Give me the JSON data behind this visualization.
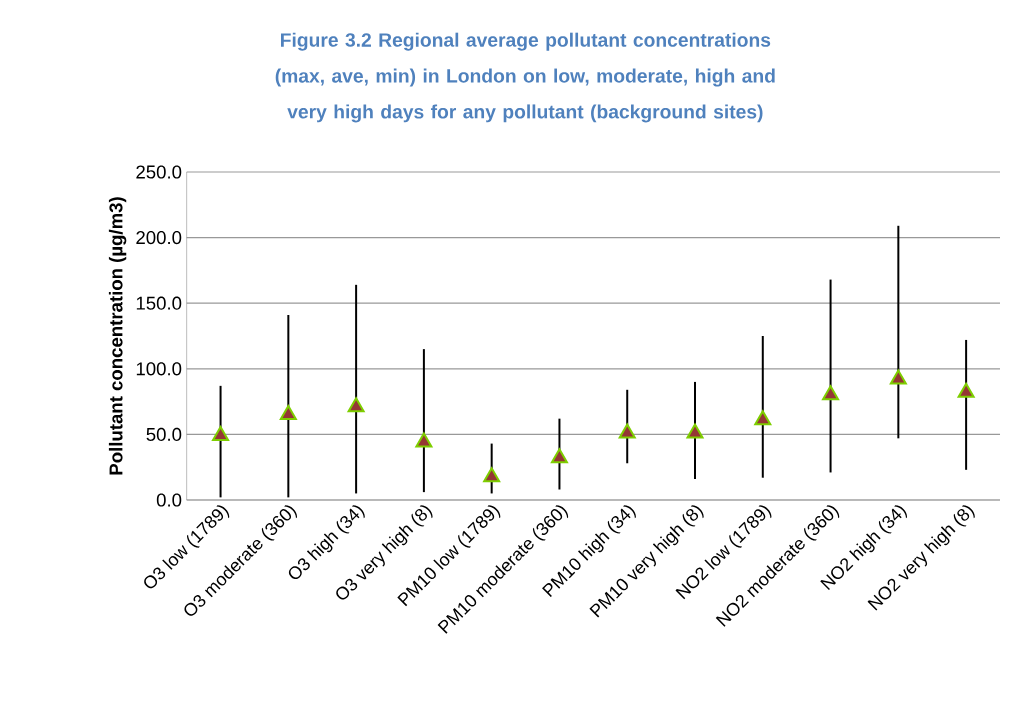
{
  "chart_data": {
    "type": "scatter",
    "title": "Figure 3.2 Regional average pollutant concentrations (max, ave, min) in London on low, moderate, high and very high days for any pollutant (background sites)",
    "ylabel": "Pollutant concentration (µg/m3)",
    "categories": [
      "O3 low (1789)",
      "O3 moderate (360)",
      "O3 high (34)",
      "O3 very high (8)",
      "PM10 low (1789)",
      "PM10 moderate (360)",
      "PM10 high (34)",
      "PM10 very high (8)",
      "NO2 low (1789)",
      "NO2 moderate (360)",
      "NO2 high (34)",
      "NO2 very high (8)"
    ],
    "values": [
      49,
      65,
      71,
      44,
      17.5,
      32,
      51,
      51,
      61,
      80,
      92,
      82
    ],
    "errors": [
      [
        2,
        87
      ],
      [
        2,
        141
      ],
      [
        5,
        164
      ],
      [
        6,
        115
      ],
      [
        5,
        43
      ],
      [
        8,
        62
      ],
      [
        28,
        84
      ],
      [
        16,
        90
      ],
      [
        17,
        125
      ],
      [
        21,
        168
      ],
      [
        47,
        209
      ],
      [
        23,
        122
      ]
    ],
    "color": "#953735",
    "marker": "triangle",
    "ylim": [
      0,
      250
    ],
    "yticks": [
      {
        "value": 0,
        "label": "0.0"
      },
      {
        "value": 50,
        "label": "50.0"
      },
      {
        "value": 100,
        "label": "100.0"
      },
      {
        "value": 150,
        "label": "150.0"
      },
      {
        "value": 200,
        "label": "200.0"
      },
      {
        "value": 250,
        "label": "250.0"
      }
    ],
    "grid": "y"
  }
}
